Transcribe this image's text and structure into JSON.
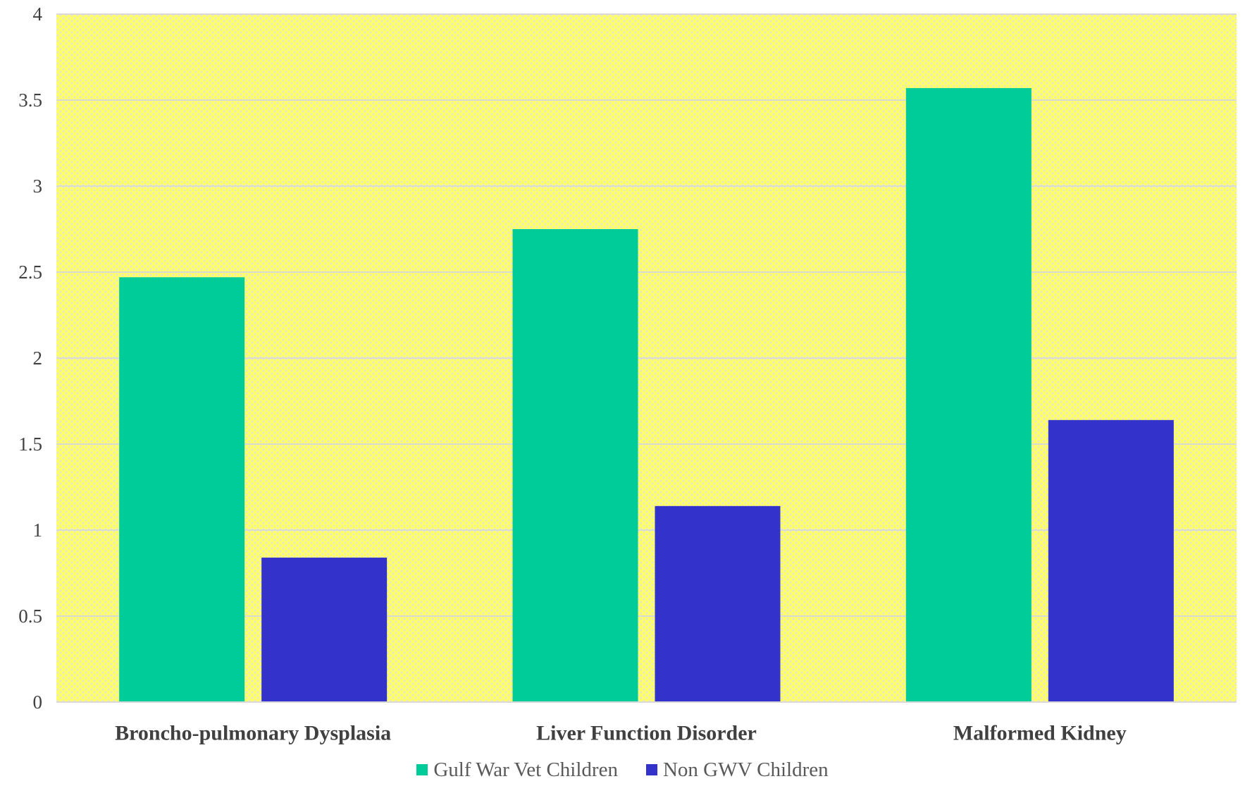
{
  "chart_data": {
    "type": "bar",
    "categories": [
      "Broncho-pulmonary Dysplasia",
      "Liver Function Disorder",
      "Malformed Kidney"
    ],
    "series": [
      {
        "name": "Gulf War Vet Children",
        "color": "#00CC99",
        "values": [
          2.47,
          2.75,
          3.57
        ]
      },
      {
        "name": "Non GWV Children",
        "color": "#3333CC",
        "values": [
          0.84,
          1.14,
          1.64
        ]
      }
    ],
    "y_ticks": [
      "0",
      "0.5",
      "1",
      "1.5",
      "2",
      "2.5",
      "3",
      "3.5",
      "4"
    ],
    "ylim": [
      0,
      4
    ],
    "grid": true,
    "plot_background": "#FFFF66",
    "gridline_color": "#D9D9D9",
    "legend_position": "bottom"
  }
}
